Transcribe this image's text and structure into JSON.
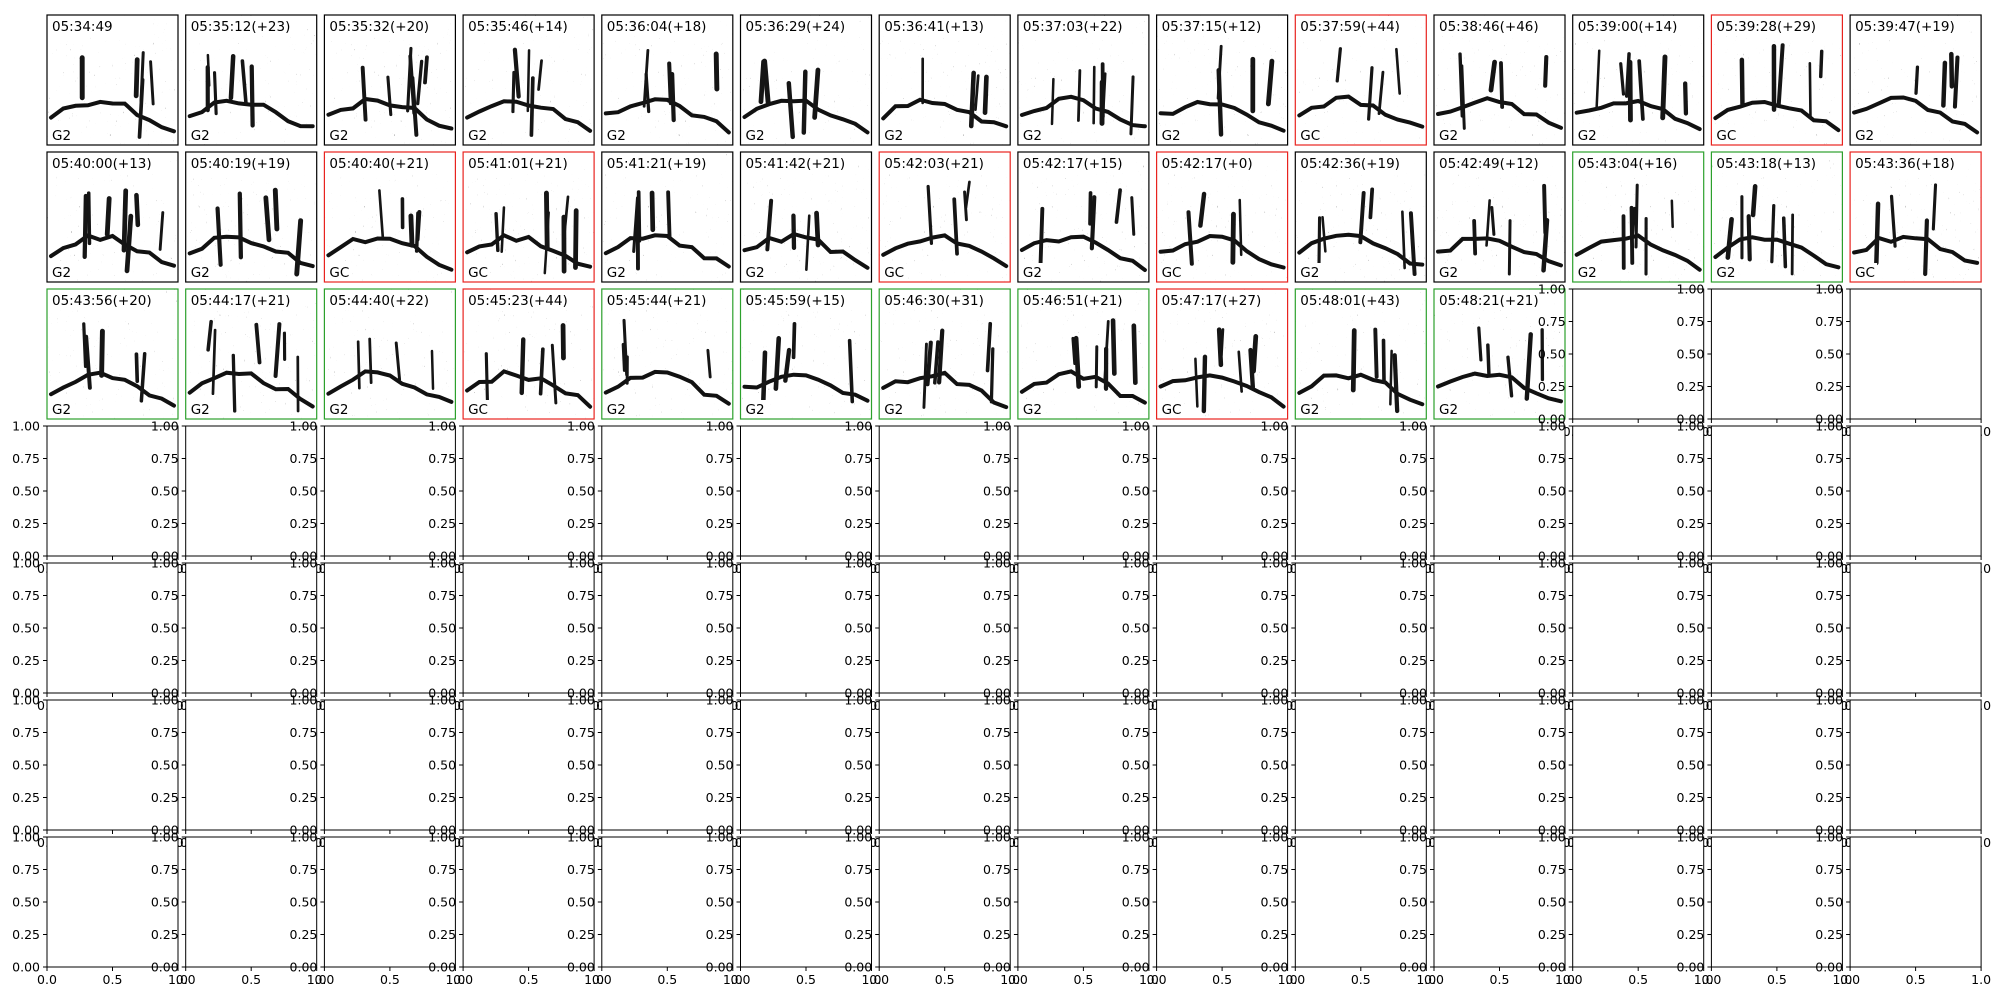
{
  "figure": {
    "grid_rows": 7,
    "grid_cols": 14,
    "background": "#ffffff"
  },
  "chart_data": {
    "type": "spectrogram-grid",
    "panels": [
      {
        "time": "05:34:49",
        "label": "G2",
        "outline": "black"
      },
      {
        "time": "05:35:12(+23)",
        "label": "G2",
        "outline": "black"
      },
      {
        "time": "05:35:32(+20)",
        "label": "G2",
        "outline": "black"
      },
      {
        "time": "05:35:46(+14)",
        "label": "G2",
        "outline": "black"
      },
      {
        "time": "05:36:04(+18)",
        "label": "G2",
        "outline": "black"
      },
      {
        "time": "05:36:29(+24)",
        "label": "G2",
        "outline": "black"
      },
      {
        "time": "05:36:41(+13)",
        "label": "G2",
        "outline": "black"
      },
      {
        "time": "05:37:03(+22)",
        "label": "G2",
        "outline": "black"
      },
      {
        "time": "05:37:15(+12)",
        "label": "G2",
        "outline": "black"
      },
      {
        "time": "05:37:59(+44)",
        "label": "GC",
        "outline": "red"
      },
      {
        "time": "05:38:46(+46)",
        "label": "G2",
        "outline": "black"
      },
      {
        "time": "05:39:00(+14)",
        "label": "G2",
        "outline": "black"
      },
      {
        "time": "05:39:28(+29)",
        "label": "GC",
        "outline": "red"
      },
      {
        "time": "05:39:47(+19)",
        "label": "G2",
        "outline": "black"
      },
      {
        "time": "05:40:00(+13)",
        "label": "G2",
        "outline": "black"
      },
      {
        "time": "05:40:19(+19)",
        "label": "G2",
        "outline": "black"
      },
      {
        "time": "05:40:40(+21)",
        "label": "GC",
        "outline": "red"
      },
      {
        "time": "05:41:01(+21)",
        "label": "GC",
        "outline": "red"
      },
      {
        "time": "05:41:21(+19)",
        "label": "G2",
        "outline": "black"
      },
      {
        "time": "05:41:42(+21)",
        "label": "G2",
        "outline": "black"
      },
      {
        "time": "05:42:03(+21)",
        "label": "GC",
        "outline": "red"
      },
      {
        "time": "05:42:17(+15)",
        "label": "G2",
        "outline": "black"
      },
      {
        "time": "05:42:17(+0)",
        "label": "GC",
        "outline": "red"
      },
      {
        "time": "05:42:36(+19)",
        "label": "G2",
        "outline": "black"
      },
      {
        "time": "05:42:49(+12)",
        "label": "G2",
        "outline": "black"
      },
      {
        "time": "05:43:04(+16)",
        "label": "G2",
        "outline": "green"
      },
      {
        "time": "05:43:18(+13)",
        "label": "G2",
        "outline": "green"
      },
      {
        "time": "05:43:36(+18)",
        "label": "GC",
        "outline": "red"
      },
      {
        "time": "05:43:56(+20)",
        "label": "G2",
        "outline": "green"
      },
      {
        "time": "05:44:17(+21)",
        "label": "G2",
        "outline": "green"
      },
      {
        "time": "05:44:40(+22)",
        "label": "G2",
        "outline": "green"
      },
      {
        "time": "05:45:23(+44)",
        "label": "GC",
        "outline": "red"
      },
      {
        "time": "05:45:44(+21)",
        "label": "G2",
        "outline": "green"
      },
      {
        "time": "05:45:59(+15)",
        "label": "G2",
        "outline": "green"
      },
      {
        "time": "05:46:30(+31)",
        "label": "G2",
        "outline": "green"
      },
      {
        "time": "05:46:51(+21)",
        "label": "G2",
        "outline": "green"
      },
      {
        "time": "05:47:17(+27)",
        "label": "GC",
        "outline": "red"
      },
      {
        "time": "05:48:01(+43)",
        "label": "G2",
        "outline": "green"
      },
      {
        "time": "05:48:21(+21)",
        "label": "G2",
        "outline": "green"
      }
    ],
    "empty_axes": {
      "xlim": [
        0.0,
        1.0
      ],
      "ylim": [
        0.0,
        1.0
      ],
      "y_ticks": [
        "0.00",
        "0.25",
        "0.50",
        "0.75",
        "1.00"
      ],
      "x_ticks": [
        "0.0",
        "0.5",
        "1.0"
      ]
    },
    "outline_colors": {
      "black": "#000000",
      "red": "#e8231f",
      "green": "#2ca02c"
    }
  }
}
